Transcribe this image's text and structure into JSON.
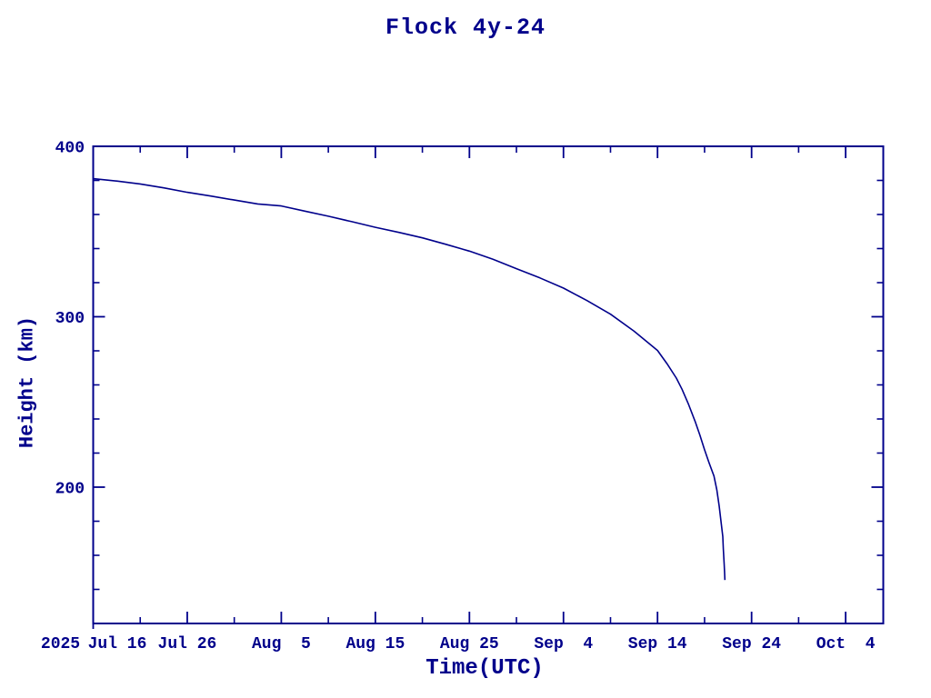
{
  "page": {
    "background_color": "#FFFFFF",
    "accent_color": "#00008B"
  },
  "chart_data": {
    "type": "line",
    "title": "Flock 4y-24",
    "xlabel": "Time(UTC)",
    "ylabel": "Height (km)",
    "year_label": "2025",
    "line_color": "#00008B",
    "axis_color": "#00008B",
    "grid": false,
    "legend": "none",
    "x_axis": {
      "unit": "days since 2025 Jul 16 00:00 UTC",
      "range_days": [
        0,
        84
      ],
      "major_tick_interval_days": 10,
      "minor_tick_interval_days": 5,
      "major_ticks": [
        {
          "day": 0,
          "label": "Jul 16"
        },
        {
          "day": 10,
          "label": "Jul 26"
        },
        {
          "day": 20,
          "label": "Aug  5"
        },
        {
          "day": 30,
          "label": "Aug 15"
        },
        {
          "day": 40,
          "label": "Aug 25"
        },
        {
          "day": 50,
          "label": "Sep  4"
        },
        {
          "day": 60,
          "label": "Sep 14"
        },
        {
          "day": 70,
          "label": "Sep 24"
        },
        {
          "day": 80,
          "label": "Oct  4"
        }
      ]
    },
    "y_axis": {
      "range_km": [
        120,
        400
      ],
      "major_ticks": [
        200,
        300,
        400
      ],
      "major_tick_labels": [
        "200",
        "300",
        "400"
      ],
      "minor_tick_interval_km": 20
    },
    "series": [
      {
        "name": "Flock 4y-24",
        "points_day_km": [
          [
            0,
            381.0
          ],
          [
            2.5,
            379.6
          ],
          [
            5,
            377.9
          ],
          [
            7.5,
            375.6
          ],
          [
            10,
            373.0
          ],
          [
            12.5,
            370.8
          ],
          [
            15,
            368.5
          ],
          [
            17.5,
            366.2
          ],
          [
            20,
            365.0
          ],
          [
            22.5,
            362.0
          ],
          [
            25,
            359.0
          ],
          [
            27.5,
            355.8
          ],
          [
            30,
            352.5
          ],
          [
            32.5,
            349.5
          ],
          [
            35,
            346.3
          ],
          [
            37.5,
            342.5
          ],
          [
            40,
            338.5
          ],
          [
            42.5,
            333.7
          ],
          [
            45,
            328.2
          ],
          [
            47.5,
            322.8
          ],
          [
            50,
            316.8
          ],
          [
            52.5,
            309.5
          ],
          [
            55,
            301.5
          ],
          [
            57.5,
            291.5
          ],
          [
            60,
            280.2
          ],
          [
            61,
            272.5
          ],
          [
            62,
            264.0
          ],
          [
            62.6,
            257.5
          ],
          [
            63.3,
            248.5
          ],
          [
            64,
            238.5
          ],
          [
            64.5,
            230.5
          ],
          [
            65,
            222.0
          ],
          [
            65.5,
            214.0
          ],
          [
            66,
            206.5
          ],
          [
            66.3,
            198.5
          ],
          [
            66.55,
            189.0
          ],
          [
            66.75,
            180.0
          ],
          [
            66.94,
            171.0
          ],
          [
            67.0,
            163.5
          ],
          [
            67.08,
            155.0
          ],
          [
            67.13,
            149.5
          ],
          [
            67.16,
            145.5
          ]
        ]
      }
    ]
  }
}
